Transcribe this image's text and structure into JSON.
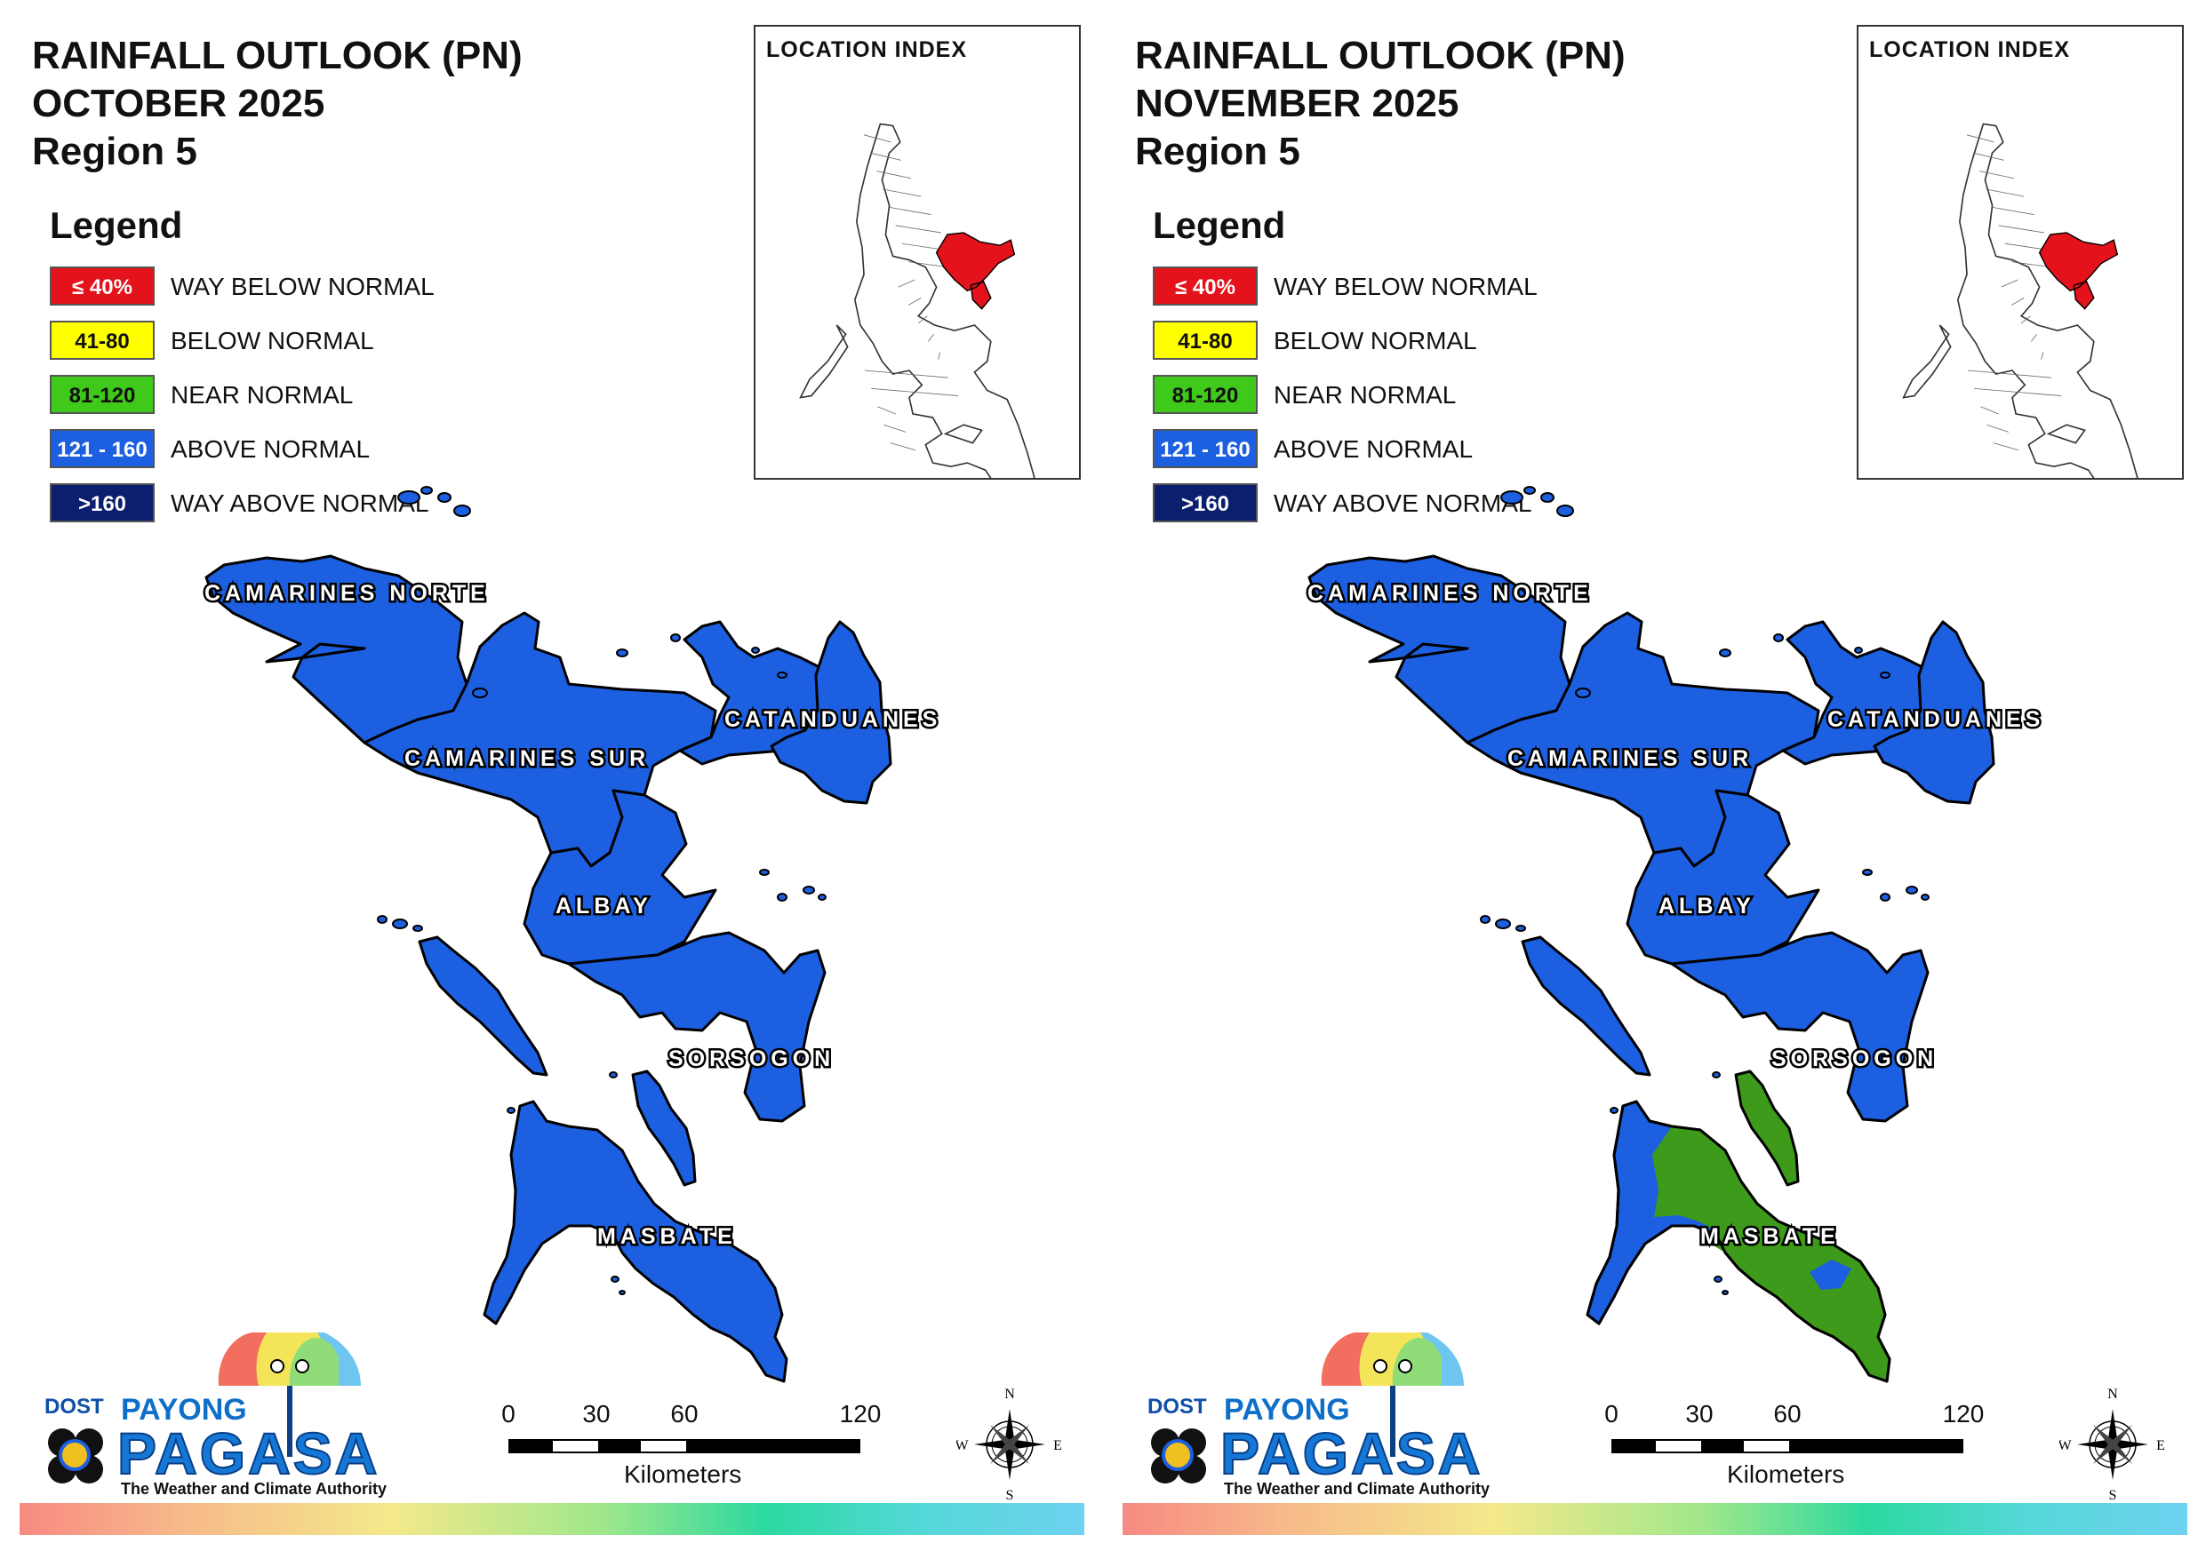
{
  "colors": {
    "way_below": "#e4121a",
    "below": "#ffff00",
    "near": "#3fc91a",
    "above": "#1c5fe0",
    "way_above": "#0b1f6e",
    "near_map": "#3d9a1a",
    "above_map": "#1c5fe0"
  },
  "panels": [
    {
      "title_line1": "RAINFALL OUTLOOK (PN)",
      "title_line2": "OCTOBER 2025",
      "title_line3": "Region 5",
      "masbate_category": "above"
    },
    {
      "title_line1": "RAINFALL OUTLOOK (PN)",
      "title_line2": "NOVEMBER 2025",
      "title_line3": "Region 5",
      "masbate_category": "near"
    }
  ],
  "legend": {
    "title": "Legend",
    "items": [
      {
        "range": "≤ 40%",
        "label": "WAY BELOW NORMAL",
        "color": "#e4121a",
        "text_color": "#ffffff"
      },
      {
        "range": "41-80",
        "label": "BELOW NORMAL",
        "color": "#ffff00",
        "text_color": "#111111"
      },
      {
        "range": "81-120",
        "label": "NEAR NORMAL",
        "color": "#3fc91a",
        "text_color": "#111111"
      },
      {
        "range": "121 - 160",
        "label": "ABOVE NORMAL",
        "color": "#1c5fe0",
        "text_color": "#ffffff"
      },
      {
        "range": ">160",
        "label": "WAY ABOVE NORMAL",
        "color": "#0b1f6e",
        "text_color": "#ffffff"
      }
    ]
  },
  "location_index": {
    "title": "LOCATION INDEX"
  },
  "provinces": {
    "camarines_norte": "CAMARINES NORTE",
    "camarines_sur": "CAMARINES SUR",
    "catanduanes": "CATANDUANES",
    "albay": "ALBAY",
    "sorsogon": "SORSOGON",
    "masbate": "MASBATE"
  },
  "scale": {
    "ticks": [
      "0",
      "30",
      "60",
      "120"
    ],
    "unit": "Kilometers"
  },
  "compass": {
    "n": "N",
    "e": "E",
    "s": "S",
    "w": "W"
  },
  "logo": {
    "dost": "DOST",
    "payong": "PAYONG",
    "pagasa": "PAGASA",
    "tagline": "The Weather and Climate Authority"
  }
}
